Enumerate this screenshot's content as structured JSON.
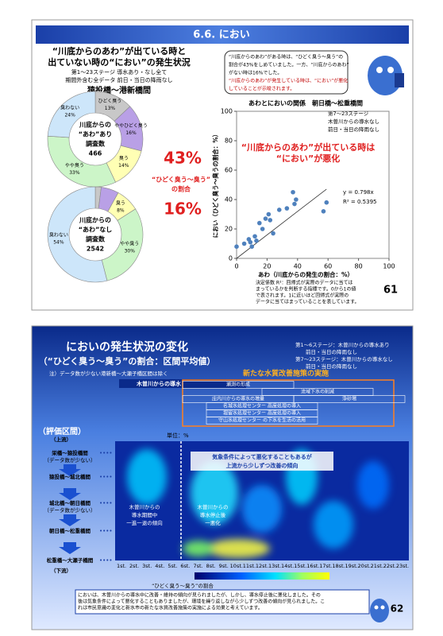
{
  "slide1": {
    "title": "6.6. におい",
    "heading": [
      "“川底からのあわ”が出ている時と",
      "出ていない時の“におい”の発生状況"
    ],
    "conditions": [
      "第1～23ステージ 導水あり・なし全て",
      "期間外含む全データ 前日・当日の降雨なし"
    ],
    "section": "猿投橋～港新橋間",
    "ratio_labels": [
      "43%",
      "16%"
    ],
    "ratio_caption": [
      "“ひどく臭う～臭う”",
      "の割合"
    ],
    "bubble": [
      "“川底からのあわ”がある時は、“ひどく臭う～臭う”の",
      "割合が43%をしめていました。一方、“川底からのあわ”",
      "がない時は16%でした。",
      "“川底からのあわ”が発生している時は、“におい”が悪化",
      "していることが示唆されます。"
    ],
    "callout": [
      "“川底からのあわ”が出ている時は",
      "“におい”が悪化"
    ],
    "notes": [
      "決定係数 R²：回帰式が実際のデータに当ては",
      "まっているかを判断する指標です。0から1の値",
      "で表されます。1に近いほど回帰式が実際の",
      "データに当てはまっていることを表しています。"
    ],
    "page": "61"
  },
  "chart_data": [
    {
      "type": "pie",
      "categories": [
        "ひどく臭う",
        "ややひどく臭う",
        "臭う",
        "やや臭う",
        "臭わない"
      ],
      "values": [
        13,
        16,
        14,
        33,
        24
      ],
      "value_labels": [
        "13%",
        "16%",
        "14%",
        "33%",
        "24%"
      ],
      "colors": [
        "#c8c8c8",
        "#b9a0e6",
        "#ffffb4",
        "#ccf5c8",
        "#cde6fa"
      ],
      "center_text": [
        "川底からの",
        "“あわ”あり",
        "調査数",
        "466"
      ]
    },
    {
      "type": "pie",
      "categories": [
        null,
        null,
        "臭う",
        "やや臭う",
        "臭わない"
      ],
      "values": [
        2,
        6,
        8,
        30,
        54
      ],
      "value_labels": [
        null,
        null,
        "8%",
        "30%",
        "54%"
      ],
      "colors": [
        "#c8c8c8",
        "#b9a0e6",
        "#ffffb4",
        "#ccf5c8",
        "#cde6fa"
      ],
      "center_text": [
        "川底からの",
        "“あわ”なし",
        "調査数",
        "2542"
      ]
    },
    {
      "type": "scatter",
      "title": "あわとにおいの関係　朝日橋～松重橋間",
      "legend_note": [
        "第7～23ステージ",
        "木曽川からの導水なし",
        "前日・当日の降雨なし"
      ],
      "x": [
        0,
        5,
        8,
        9,
        10,
        12,
        13,
        15,
        17,
        19,
        21,
        22,
        24,
        28,
        33,
        37,
        38,
        39,
        57,
        59
      ],
      "series": [
        {
          "color": "#4f81bd",
          "values": [
            8,
            10,
            13,
            11,
            8,
            15,
            12,
            24,
            20,
            27,
            30,
            26,
            17,
            33,
            34,
            45,
            37,
            40,
            32,
            38
          ]
        }
      ],
      "xlim": [
        0,
        100
      ],
      "ylim": [
        0,
        100
      ],
      "xticks": [
        0,
        20,
        40,
        60,
        80,
        100
      ],
      "yticks": [
        0,
        20,
        40,
        60,
        80,
        100
      ],
      "xlabel": "あわ（川底からの発生の割合：%）",
      "ylabel": "におい（ひどく臭う～臭うの割合：%）",
      "trend": {
        "slope": 0.798,
        "label": "y = 0.798x",
        "r2_label": "R² = 0.5395"
      }
    }
  ],
  "slide2": {
    "title": "においの発生状況の変化",
    "subtitle": "（“ひどく臭う～臭う”の割合：区間平均値）",
    "legend": [
      "第1～6ステージ：木曽川からの導水あり",
      "　　前日・当日の降雨なし",
      "第7～23ステージ：木曽川からの導水なし",
      "　　前日・当日の降雨なし"
    ],
    "note": "注）データ数が少ない港新橋～大瀬子橋区間は除く",
    "measures_title": "新たな水質改善施策の実施",
    "inflow": "木曽川からの導水",
    "measures": [
      "瀬測の形成",
      "流域下水の削減",
      "庄内川からの導水の増量",
      "浄砂場",
      "名城水処理センター 高度処理の導入",
      "堀留水処理センター 高度処理の導入",
      "守山水処理センター の下水を生活の活用"
    ],
    "eval_title": "（評価区間）",
    "upstream": "（上流）",
    "downstream": "（下流）",
    "sections": [
      [
        "栄橋～猿投橋間",
        "（データ数が少ない）"
      ],
      [
        "猿投橋～城北橋間"
      ],
      [
        "城北橋～朝日橋間",
        "（データ数が少ない）"
      ],
      [
        "朝日橋～松重橋間"
      ],
      [
        "松重橋～大瀬子橋間"
      ]
    ],
    "unit": "単位：%",
    "annotation_top": [
      "気象条件によって悪化することもあるが",
      "上流から少しずつ改善の傾向"
    ],
    "annotation_left": [
      "木曽川からの",
      "導水期間中",
      "一進一退の傾向"
    ],
    "annotation_right": [
      "木曽川からの",
      "導水停止後",
      "一悪化"
    ],
    "stages": [
      "1st.",
      "2st.",
      "3st.",
      "4st.",
      "5st.",
      "6st.",
      "7st.",
      "8st.",
      "9st.",
      "10st.",
      "11st.",
      "12st.",
      "13st.",
      "14st.",
      "15st.",
      "16st.",
      "17st.",
      "18st.",
      "19st.",
      "20st.",
      "21st.",
      "22st.",
      "23st."
    ],
    "colorbar_label": "“ひどく臭う～臭う”の割合",
    "summary": [
      "においは、木曽川からの導水中に改善・維持の傾向が見られましたが、しかし、導水停止後に悪化しました。その",
      "後は気象条件によって悪化することもありましたが、環境を繰り返しながら少しずつ改善の傾向が見られました。こ",
      "れは市民意識の変化と新水市の新たな水質改善施策の実施による効果と考えています。"
    ],
    "page": "62"
  }
}
